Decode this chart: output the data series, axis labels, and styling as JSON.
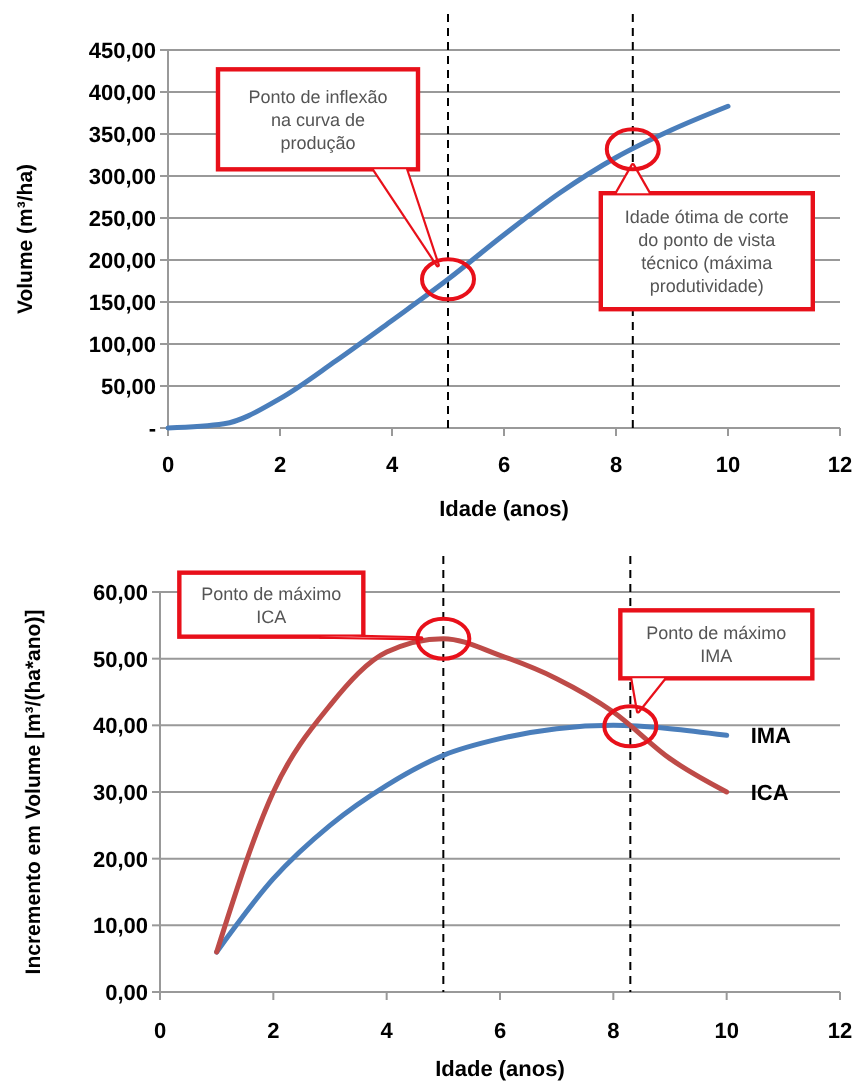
{
  "chart_data": [
    {
      "type": "line",
      "ylabel": "Volume (m³/ha)",
      "xlabel": "Idade (anos)",
      "x": [
        0,
        1,
        2,
        3,
        4,
        5,
        6,
        7,
        8,
        9,
        10
      ],
      "series": [
        {
          "color": "#4a7ebb",
          "values": [
            0,
            5,
            35,
            80,
            128,
            177,
            230,
            280,
            322,
            355,
            383
          ]
        }
      ],
      "xlim": [
        0,
        12
      ],
      "xticks": [
        0,
        2,
        4,
        6,
        8,
        10,
        12
      ],
      "ylim": [
        0,
        450
      ],
      "yticks": [
        {
          "value": 0,
          "label": "-"
        },
        {
          "value": 50,
          "label": "50,00"
        },
        {
          "value": 100,
          "label": "100,00"
        },
        {
          "value": 150,
          "label": "150,00"
        },
        {
          "value": 200,
          "label": "200,00"
        },
        {
          "value": 250,
          "label": "250,00"
        },
        {
          "value": 300,
          "label": "300,00"
        },
        {
          "value": 350,
          "label": "350,00"
        },
        {
          "value": 400,
          "label": "400,00"
        },
        {
          "value": 450,
          "label": "450,00"
        }
      ],
      "grid": "y",
      "marker": "none",
      "line_style": "solid",
      "legend": false,
      "ref_lines": [
        {
          "axis": "x",
          "value": 5,
          "color": "#000000",
          "line_style": "dashed"
        },
        {
          "axis": "x",
          "value": 8.3,
          "color": "#000000",
          "line_style": "dashed"
        }
      ],
      "annotations": [
        "Ponto de inflexão na curva de produção",
        "Idade ótima de corte do ponto de vista técnico (máxima produtividade)"
      ]
    },
    {
      "type": "line",
      "ylabel": "Incremento em Volume [m³/(ha*ano)]",
      "xlabel": "Idade (anos)",
      "x": [
        1,
        2,
        3,
        4,
        5,
        6,
        7,
        8,
        9,
        10
      ],
      "series": [
        {
          "name": "IMA",
          "color": "#4a7ebb",
          "values": [
            6,
            17,
            25,
            31,
            35.5,
            38,
            39.5,
            40,
            39.5,
            38.5
          ]
        },
        {
          "name": "ICA",
          "color": "#be4b48",
          "values": [
            6,
            30,
            43,
            51,
            53,
            50.5,
            47,
            42,
            35,
            30
          ]
        }
      ],
      "xlim": [
        0,
        12
      ],
      "xticks": [
        0,
        2,
        4,
        6,
        8,
        10,
        12
      ],
      "ylim": [
        0,
        60
      ],
      "yticks": [
        {
          "value": 0,
          "label": "0,00"
        },
        {
          "value": 10,
          "label": "10,00"
        },
        {
          "value": 20,
          "label": "20,00"
        },
        {
          "value": 30,
          "label": "30,00"
        },
        {
          "value": 40,
          "label": "40,00"
        },
        {
          "value": 50,
          "label": "50,00"
        },
        {
          "value": 60,
          "label": "60,00"
        }
      ],
      "grid": "y",
      "marker": "none",
      "line_style": "solid",
      "legend": false,
      "ref_lines": [
        {
          "axis": "x",
          "value": 5,
          "color": "#000000",
          "line_style": "dashed"
        },
        {
          "axis": "x",
          "value": 8.3,
          "color": "#000000",
          "line_style": "dashed"
        }
      ],
      "annotations": [
        "Ponto de máximo ICA",
        "Ponto de máximo IMA"
      ]
    }
  ]
}
